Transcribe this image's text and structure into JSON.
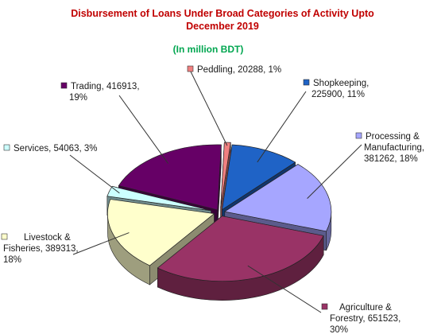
{
  "chart_data": {
    "type": "pie",
    "title_lines": [
      "Disbursement of Loans Under Broad Categories of Activity Upto",
      "December 2019"
    ],
    "subtitle": "(In million BDT)",
    "colors": {
      "title": "#c00000",
      "subtitle": "#00a650"
    },
    "slices": [
      {
        "label": "Peddling",
        "value": 20288,
        "percent": 1,
        "color": "#f08080",
        "label_lines": [
          "Peddling, 20288, 1%"
        ]
      },
      {
        "label": "Shopkeeping",
        "value": 225900,
        "percent": 11,
        "color": "#1f63c6",
        "label_lines": [
          "Shopkeeping,",
          "225900, 11%"
        ]
      },
      {
        "label": "Processing & Manufacturing",
        "value": 381262,
        "percent": 18,
        "color": "#a6a6ff",
        "label_lines": [
          "Processing &",
          "Manufacturing,",
          "381262, 18%"
        ]
      },
      {
        "label": "Agriculture & Forestry",
        "value": 651523,
        "percent": 30,
        "color": "#993366",
        "label_lines": [
          "Agriculture &",
          "Forestry, 651523,",
          "30%"
        ]
      },
      {
        "label": "Livestock & Fisheries",
        "value": 389313,
        "percent": 18,
        "color": "#ffffcc",
        "label_lines": [
          "Livestock &",
          "Fisheries, 389313,",
          "18%"
        ]
      },
      {
        "label": "Services",
        "value": 54063,
        "percent": 3,
        "color": "#ccffff",
        "label_lines": [
          "Services, 54063, 3%"
        ]
      },
      {
        "label": "Trading",
        "value": 416913,
        "percent": 19,
        "color": "#660066",
        "label_lines": [
          "Trading, 416913,",
          "19%"
        ]
      }
    ]
  }
}
